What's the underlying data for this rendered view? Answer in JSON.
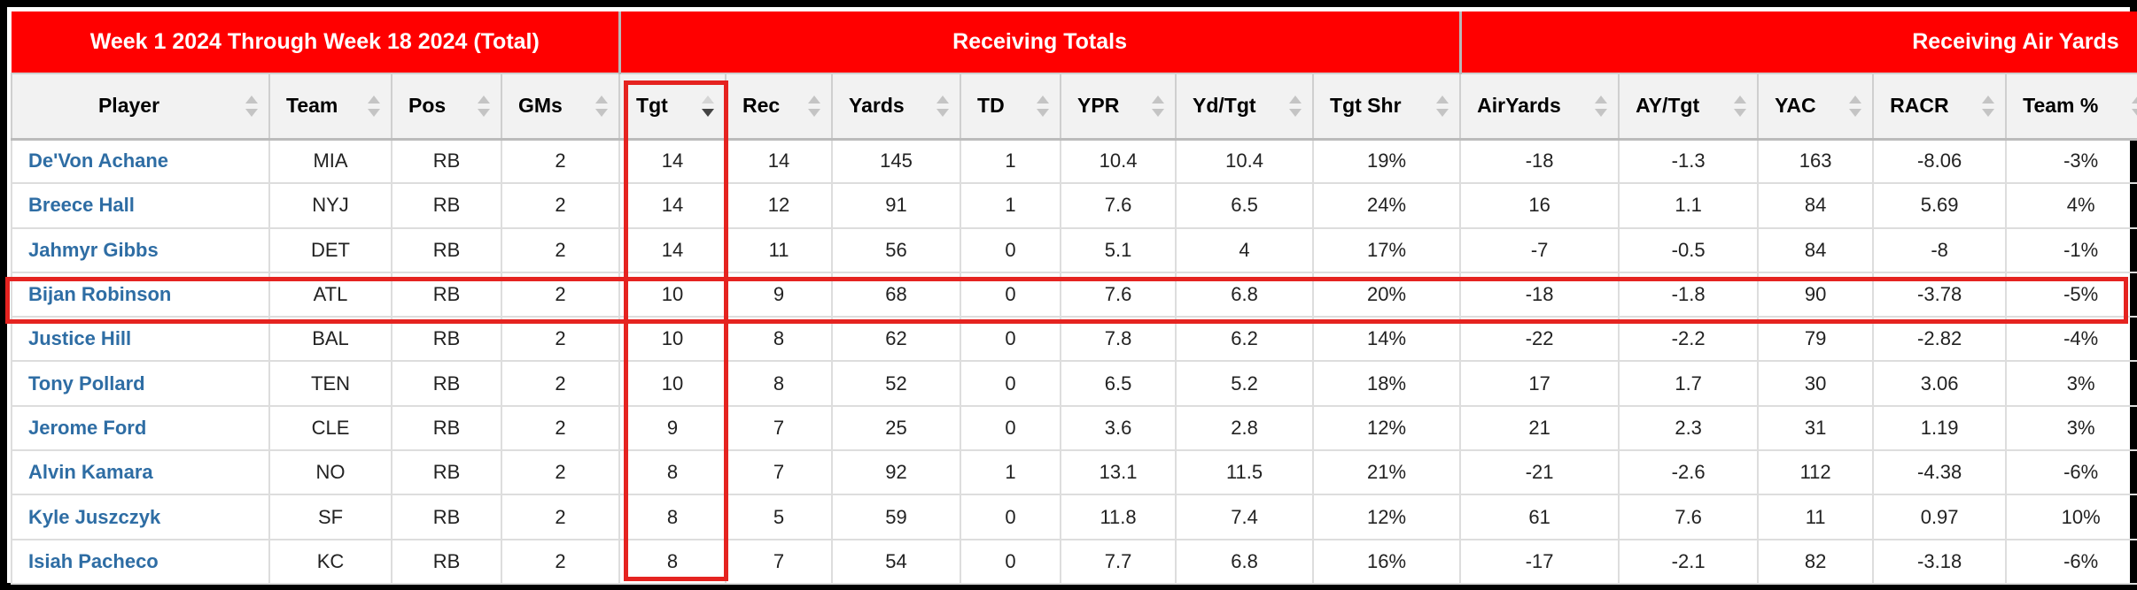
{
  "groups": {
    "week": "Week 1 2024 Through Week 18 2024 (Total)",
    "receiving": "Receiving Totals",
    "air": "Receiving Air Yards"
  },
  "columns": [
    "Player",
    "Team",
    "Pos",
    "GMs",
    "Tgt",
    "Rec",
    "Yards",
    "TD",
    "YPR",
    "Yd/Tgt",
    "Tgt Shr",
    "AirYards",
    "AY/Tgt",
    "YAC",
    "RACR",
    "Team %"
  ],
  "sorted_column": "Tgt",
  "sort_direction": "descending",
  "highlight": {
    "color": "#e52320",
    "column": "Tgt",
    "row_player": "Bijan Robinson"
  },
  "header_color": "#ff0000",
  "link_color": "#2e6da4",
  "rows": [
    {
      "player": "De'Von Achane",
      "team": "MIA",
      "pos": "RB",
      "gms": "2",
      "tgt": "14",
      "rec": "14",
      "yards": "145",
      "td": "1",
      "ypr": "10.4",
      "yd_tgt": "10.4",
      "tgt_shr": "19%",
      "airyards": "-18",
      "ay_tgt": "-1.3",
      "yac": "163",
      "racr": "-8.06",
      "team_pct": "-3%"
    },
    {
      "player": "Breece Hall",
      "team": "NYJ",
      "pos": "RB",
      "gms": "2",
      "tgt": "14",
      "rec": "12",
      "yards": "91",
      "td": "1",
      "ypr": "7.6",
      "yd_tgt": "6.5",
      "tgt_shr": "24%",
      "airyards": "16",
      "ay_tgt": "1.1",
      "yac": "84",
      "racr": "5.69",
      "team_pct": "4%"
    },
    {
      "player": "Jahmyr Gibbs",
      "team": "DET",
      "pos": "RB",
      "gms": "2",
      "tgt": "14",
      "rec": "11",
      "yards": "56",
      "td": "0",
      "ypr": "5.1",
      "yd_tgt": "4",
      "tgt_shr": "17%",
      "airyards": "-7",
      "ay_tgt": "-0.5",
      "yac": "84",
      "racr": "-8",
      "team_pct": "-1%"
    },
    {
      "player": "Bijan Robinson",
      "team": "ATL",
      "pos": "RB",
      "gms": "2",
      "tgt": "10",
      "rec": "9",
      "yards": "68",
      "td": "0",
      "ypr": "7.6",
      "yd_tgt": "6.8",
      "tgt_shr": "20%",
      "airyards": "-18",
      "ay_tgt": "-1.8",
      "yac": "90",
      "racr": "-3.78",
      "team_pct": "-5%"
    },
    {
      "player": "Justice Hill",
      "team": "BAL",
      "pos": "RB",
      "gms": "2",
      "tgt": "10",
      "rec": "8",
      "yards": "62",
      "td": "0",
      "ypr": "7.8",
      "yd_tgt": "6.2",
      "tgt_shr": "14%",
      "airyards": "-22",
      "ay_tgt": "-2.2",
      "yac": "79",
      "racr": "-2.82",
      "team_pct": "-4%"
    },
    {
      "player": "Tony Pollard",
      "team": "TEN",
      "pos": "RB",
      "gms": "2",
      "tgt": "10",
      "rec": "8",
      "yards": "52",
      "td": "0",
      "ypr": "6.5",
      "yd_tgt": "5.2",
      "tgt_shr": "18%",
      "airyards": "17",
      "ay_tgt": "1.7",
      "yac": "30",
      "racr": "3.06",
      "team_pct": "3%"
    },
    {
      "player": "Jerome Ford",
      "team": "CLE",
      "pos": "RB",
      "gms": "2",
      "tgt": "9",
      "rec": "7",
      "yards": "25",
      "td": "0",
      "ypr": "3.6",
      "yd_tgt": "2.8",
      "tgt_shr": "12%",
      "airyards": "21",
      "ay_tgt": "2.3",
      "yac": "31",
      "racr": "1.19",
      "team_pct": "3%"
    },
    {
      "player": "Alvin Kamara",
      "team": "NO",
      "pos": "RB",
      "gms": "2",
      "tgt": "8",
      "rec": "7",
      "yards": "92",
      "td": "1",
      "ypr": "13.1",
      "yd_tgt": "11.5",
      "tgt_shr": "21%",
      "airyards": "-21",
      "ay_tgt": "-2.6",
      "yac": "112",
      "racr": "-4.38",
      "team_pct": "-6%"
    },
    {
      "player": "Kyle Juszczyk",
      "team": "SF",
      "pos": "RB",
      "gms": "2",
      "tgt": "8",
      "rec": "5",
      "yards": "59",
      "td": "0",
      "ypr": "11.8",
      "yd_tgt": "7.4",
      "tgt_shr": "12%",
      "airyards": "61",
      "ay_tgt": "7.6",
      "yac": "11",
      "racr": "0.97",
      "team_pct": "10%"
    },
    {
      "player": "Isiah Pacheco",
      "team": "KC",
      "pos": "RB",
      "gms": "2",
      "tgt": "8",
      "rec": "7",
      "yards": "54",
      "td": "0",
      "ypr": "7.7",
      "yd_tgt": "6.8",
      "tgt_shr": "16%",
      "airyards": "-17",
      "ay_tgt": "-2.1",
      "yac": "82",
      "racr": "-3.18",
      "team_pct": "-6%"
    }
  ]
}
